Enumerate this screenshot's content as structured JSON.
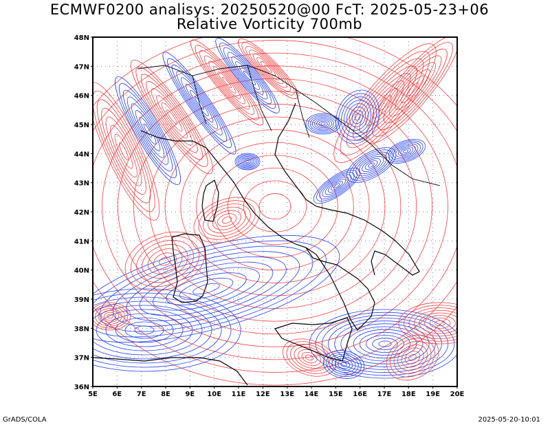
{
  "header": {
    "title_line1": "ECMWF0200 analisys: 20250520@00 FcT: 2025-05-23+06",
    "title_line2": "Relative Vorticity 700mb"
  },
  "map": {
    "lat_labels": [
      "48N",
      "47N",
      "46N",
      "45N",
      "44N",
      "43N",
      "42N",
      "41N",
      "40N",
      "39N",
      "38N",
      "37N",
      "36N"
    ],
    "lon_labels": [
      "5E",
      "6E",
      "7E",
      "8E",
      "9E",
      "10E",
      "11E",
      "12E",
      "13E",
      "14E",
      "15E",
      "16E",
      "17E",
      "18E",
      "19E",
      "20E"
    ],
    "colors": {
      "positive_contour": "#f04040",
      "negative_contour": "#2040f0",
      "coastline": "#000000",
      "grid": "#a060a0"
    }
  },
  "footer": {
    "left": "GrADS/COLA",
    "right": "2025-05-20-10:01"
  }
}
